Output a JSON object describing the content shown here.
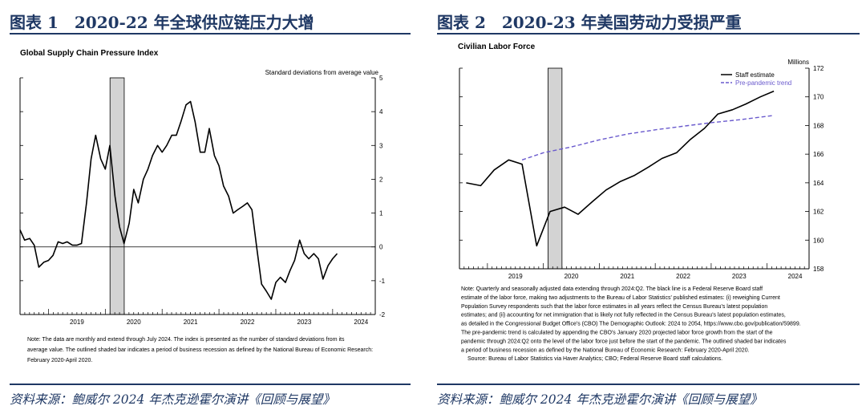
{
  "left": {
    "figure_title": "图表 1　2020-22 年全球供应链压力大增",
    "source": "资料来源：鲍威尔 2024 年杰克逊霍尔演讲《回顾与展望》",
    "notes": [
      "Note: The data are monthly and extend through July 2024. The index is presented as the number of standard deviations from its",
      "average value. The outlined shaded bar indicates a period of business recession as defined by the National Bureau of Economic Research:",
      "February 2020-April 2020."
    ]
  },
  "right": {
    "figure_title": "图表 2　2020-23 年美国劳动力受损严重",
    "source": "资料来源：鲍威尔 2024 年杰克逊霍尔演讲《回顾与展望》",
    "notes": [
      "Note:  Quarterly and seasonally adjusted data extending through 2024:Q2.  The black line is a Federal Reserve Board staff",
      "estimate of the labor force, making two adjustments to the Bureau of Labor Statistics' published estimates: (i) reweighing Current",
      "Population Survey respondents such that the labor force estimates in all years reflect the Census Bureau's latest population",
      "estimates; and (ii) accounting for net immigration that is likely not fully reflected in the Census Bureau's latest population estimates,",
      "as detailed in the Congressional Budget Office's (CBO) The Demographic Outlook: 2024 to 2054, https://www.cbo.gov/publication/59899.",
      "The pre-pandemic trend is calculated by appending the CBO's January 2020 projected labor force growth from the start of the",
      "pandemic through 2024:Q2 onto the level of the labor force just before the start of the pandemic. The outlined shaded bar indicates",
      "a period of business recession as defined by the National Bureau of Economic Research: February 2020-April 2020.",
      "Source: Bureau of Labor Statistics via Haver Analytics; CBO; Federal Reserve Board staff calculations."
    ]
  },
  "colors": {
    "title": "#1f3864",
    "recession": "#d3d3d3",
    "trend": "#6a5acd"
  },
  "chart_data": [
    {
      "type": "line",
      "title": "Global Supply Chain Pressure Index",
      "ylabel": "Standard deviations from average value",
      "ylim": [
        -2,
        5
      ],
      "yticks": [
        5,
        4,
        3,
        2,
        1,
        0,
        -1,
        -2
      ],
      "xlim": [
        2018.5,
        2024.75
      ],
      "xticks": [
        "2019",
        "2020",
        "2021",
        "2022",
        "2023",
        "2024"
      ],
      "recession": [
        2020.083,
        2020.333
      ],
      "zero_line": true,
      "series": [
        {
          "values": [
            [
              2018.5,
              0.5
            ],
            [
              2018.58,
              0.2
            ],
            [
              2018.67,
              0.25
            ],
            [
              2018.75,
              0.05
            ],
            [
              2018.83,
              -0.6
            ],
            [
              2018.92,
              -0.45
            ],
            [
              2019.0,
              -0.4
            ],
            [
              2019.08,
              -0.25
            ],
            [
              2019.17,
              0.15
            ],
            [
              2019.25,
              0.1
            ],
            [
              2019.33,
              0.15
            ],
            [
              2019.42,
              0.05
            ],
            [
              2019.5,
              0.05
            ],
            [
              2019.58,
              0.1
            ],
            [
              2019.67,
              1.3
            ],
            [
              2019.75,
              2.6
            ],
            [
              2019.83,
              3.3
            ],
            [
              2019.92,
              2.6
            ],
            [
              2020.0,
              2.3
            ],
            [
              2020.08,
              3.0
            ],
            [
              2020.17,
              1.5
            ],
            [
              2020.25,
              0.6
            ],
            [
              2020.33,
              0.1
            ],
            [
              2020.42,
              0.7
            ],
            [
              2020.5,
              1.7
            ],
            [
              2020.58,
              1.3
            ],
            [
              2020.67,
              2.0
            ],
            [
              2020.75,
              2.3
            ],
            [
              2020.83,
              2.7
            ],
            [
              2020.92,
              3.0
            ],
            [
              2021.0,
              2.8
            ],
            [
              2021.08,
              3.0
            ],
            [
              2021.17,
              3.3
            ],
            [
              2021.25,
              3.3
            ],
            [
              2021.33,
              3.7
            ],
            [
              2021.42,
              4.2
            ],
            [
              2021.5,
              4.3
            ],
            [
              2021.58,
              3.7
            ],
            [
              2021.67,
              2.8
            ],
            [
              2021.75,
              2.8
            ],
            [
              2021.83,
              3.5
            ],
            [
              2021.92,
              2.7
            ],
            [
              2022.0,
              2.4
            ],
            [
              2022.08,
              1.8
            ],
            [
              2022.17,
              1.5
            ],
            [
              2022.25,
              1.0
            ],
            [
              2022.33,
              1.1
            ],
            [
              2022.42,
              1.2
            ],
            [
              2022.5,
              1.3
            ],
            [
              2022.58,
              1.1
            ],
            [
              2022.67,
              -0.1
            ],
            [
              2022.75,
              -1.1
            ],
            [
              2022.83,
              -1.3
            ],
            [
              2022.92,
              -1.55
            ],
            [
              2023.0,
              -1.05
            ],
            [
              2023.08,
              -0.9
            ],
            [
              2023.17,
              -1.05
            ],
            [
              2023.25,
              -0.7
            ],
            [
              2023.33,
              -0.4
            ],
            [
              2023.42,
              0.2
            ],
            [
              2023.5,
              -0.2
            ],
            [
              2023.58,
              -0.35
            ],
            [
              2023.67,
              -0.2
            ],
            [
              2023.75,
              -0.35
            ],
            [
              2023.83,
              -0.95
            ],
            [
              2023.92,
              -0.55
            ],
            [
              2024.0,
              -0.35
            ],
            [
              2024.08,
              -0.2
            ]
          ]
        }
      ]
    },
    {
      "type": "line",
      "title": "Civilian Labor Force",
      "ylabel": "Millions",
      "ylim": [
        158,
        172
      ],
      "yticks": [
        172,
        170,
        168,
        166,
        164,
        162,
        160,
        158
      ],
      "xlim": [
        2018.5,
        2024.75
      ],
      "xticks": [
        "2019",
        "2020",
        "2021",
        "2022",
        "2023",
        "2024"
      ],
      "recession": [
        2020.083,
        2020.333
      ],
      "legend": "top-right",
      "series": [
        {
          "name": "Staff estimate",
          "color": "#000000",
          "dash": false,
          "values": [
            [
              2018.62,
              164.0
            ],
            [
              2018.88,
              163.8
            ],
            [
              2019.12,
              164.9
            ],
            [
              2019.38,
              165.6
            ],
            [
              2019.62,
              165.3
            ],
            [
              2019.88,
              159.6
            ],
            [
              2020.12,
              162.0
            ],
            [
              2020.38,
              162.3
            ],
            [
              2020.62,
              161.8
            ],
            [
              2020.88,
              162.7
            ],
            [
              2021.12,
              163.5
            ],
            [
              2021.38,
              164.1
            ],
            [
              2021.62,
              164.5
            ],
            [
              2021.88,
              165.1
            ],
            [
              2022.12,
              165.7
            ],
            [
              2022.38,
              166.1
            ],
            [
              2022.62,
              167.0
            ],
            [
              2022.88,
              167.8
            ],
            [
              2023.12,
              168.8
            ],
            [
              2023.38,
              169.1
            ],
            [
              2023.62,
              169.5
            ],
            [
              2023.88,
              170.0
            ],
            [
              2024.12,
              170.4
            ]
          ]
        },
        {
          "name": "Pre-pandemic trend",
          "color": "#6a5acd",
          "dash": true,
          "values": [
            [
              2019.62,
              165.6
            ],
            [
              2020.0,
              166.1
            ],
            [
              2020.5,
              166.5
            ],
            [
              2021.0,
              167.0
            ],
            [
              2021.5,
              167.4
            ],
            [
              2022.0,
              167.7
            ],
            [
              2022.5,
              167.95
            ],
            [
              2023.0,
              168.2
            ],
            [
              2023.5,
              168.4
            ],
            [
              2024.12,
              168.7
            ]
          ]
        }
      ]
    }
  ]
}
